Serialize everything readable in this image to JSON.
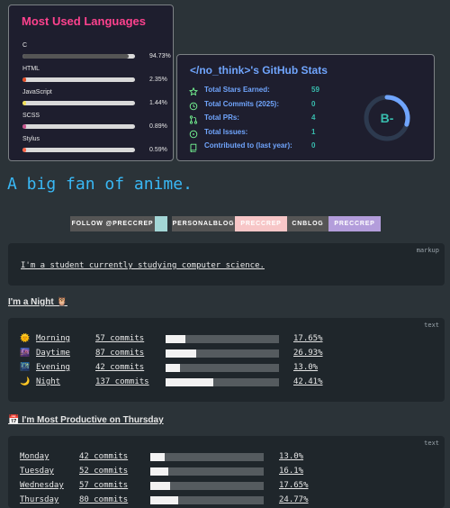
{
  "languages_card": {
    "title": "Most Used Languages",
    "items": [
      {
        "name": "C",
        "percent": "94.73%",
        "value": 94.73,
        "color": "#555555"
      },
      {
        "name": "HTML",
        "percent": "2.35%",
        "value": 2.35,
        "color": "#e34c26"
      },
      {
        "name": "JavaScript",
        "percent": "1.44%",
        "value": 1.44,
        "color": "#f1e05a"
      },
      {
        "name": "SCSS",
        "percent": "0.89%",
        "value": 0.89,
        "color": "#c6538c"
      },
      {
        "name": "Stylus",
        "percent": "0.59%",
        "value": 0.59,
        "color": "#ff6347"
      }
    ]
  },
  "stats_card": {
    "title": "</no_think>'s GitHub Stats",
    "rows": [
      {
        "label": "Total Stars Earned:",
        "value": "59",
        "icon": "star-icon"
      },
      {
        "label": "Total Commits (2025):",
        "value": "0",
        "icon": "history-icon"
      },
      {
        "label": "Total PRs:",
        "value": "4",
        "icon": "pull-request-icon"
      },
      {
        "label": "Total Issues:",
        "value": "1",
        "icon": "issue-icon"
      },
      {
        "label": "Contributed to (last year):",
        "value": "0",
        "icon": "repo-icon"
      }
    ],
    "rank": "B-",
    "rank_progress": 0.3
  },
  "heading": "A big fan of anime.",
  "badges": [
    {
      "text": "FOLLOW @PRECCREP",
      "bg": "#555555",
      "fg": "#ffffff"
    },
    {
      "text": "",
      "bg": "#a3d6d6",
      "fg": "#ffffff"
    },
    {
      "text": "PERSONALBLOG",
      "bg": "#555555",
      "fg": "#ffffff"
    },
    {
      "text": "PRECCREP",
      "bg": "#f7c6c7",
      "fg": "#ffffff"
    },
    {
      "text": "CNBLOG",
      "bg": "#555555",
      "fg": "#ffffff"
    },
    {
      "text": "PRECCREP",
      "bg": "#b39ddb",
      "fg": "#ffffff"
    }
  ],
  "markup_block": {
    "lang": "markup",
    "text": "I'm a student currently studying computer science."
  },
  "night_section": {
    "title": "I'm a Night 🦉",
    "lang": "text",
    "rows": [
      {
        "emoji": "🌞",
        "label": "Morning",
        "commits": "57 commits",
        "percent": "17.65%",
        "fraction": 0.1765
      },
      {
        "emoji": "🌆",
        "label": "Daytime",
        "commits": "87 commits",
        "percent": "26.93%",
        "fraction": 0.2693
      },
      {
        "emoji": "🌃",
        "label": "Evening",
        "commits": "42 commits",
        "percent": "13.0%",
        "fraction": 0.13
      },
      {
        "emoji": "🌙",
        "label": "Night",
        "commits": "137 commits",
        "percent": "42.41%",
        "fraction": 0.4241
      }
    ]
  },
  "productive_section": {
    "title": "📅 I'm Most Productive on Thursday",
    "lang": "text",
    "rows": [
      {
        "label": "Monday",
        "commits": "42 commits",
        "percent": "13.0%",
        "fraction": 0.13
      },
      {
        "label": "Tuesday",
        "commits": "52 commits",
        "percent": "16.1%",
        "fraction": 0.161
      },
      {
        "label": "Wednesday",
        "commits": "57 commits",
        "percent": "17.65%",
        "fraction": 0.1765
      },
      {
        "label": "Thursday",
        "commits": "80 commits",
        "percent": "24.77%",
        "fraction": 0.2477
      }
    ]
  }
}
